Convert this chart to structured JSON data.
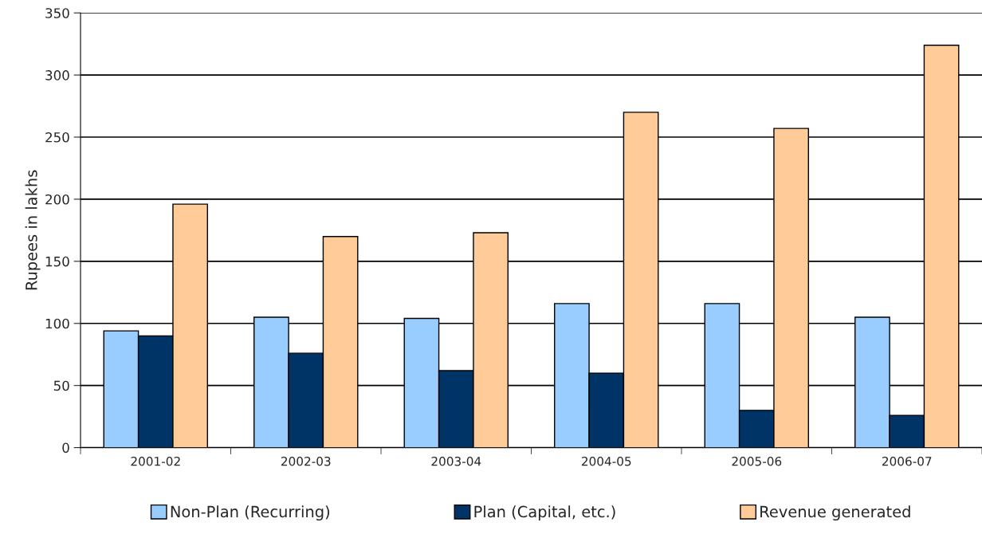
{
  "chart_data": {
    "type": "bar",
    "ylabel": "Rupees in lakhs",
    "categories": [
      "2001-02",
      "2002-03",
      "2003-04",
      "2004-05",
      "2005-06",
      "2006-07"
    ],
    "series": [
      {
        "name": "Non-Plan (Recurring)",
        "color": "#99ccff",
        "values": [
          94,
          105,
          104,
          116,
          116,
          105
        ]
      },
      {
        "name": "Plan (Capital, etc.)",
        "color": "#003366",
        "values": [
          90,
          76,
          62,
          60,
          30,
          26
        ]
      },
      {
        "name": "Revenue generated",
        "color": "#ffcc99",
        "values": [
          196,
          170,
          173,
          270,
          257,
          324
        ]
      }
    ],
    "ylim": [
      0,
      350
    ],
    "yticks": [
      0,
      50,
      100,
      150,
      200,
      250,
      300,
      350
    ],
    "grid": "y",
    "legend": "bottom"
  }
}
